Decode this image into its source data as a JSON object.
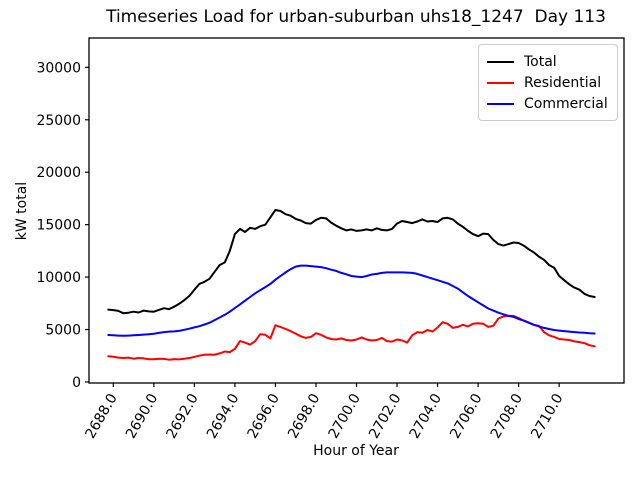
{
  "chart_data": {
    "type": "line",
    "title": "Timeseries Load for urban-suburban uhs18_1247  Day 113",
    "xlabel": "Hour of Year",
    "ylabel": "kW total",
    "xlim": [
      2686.8,
      2713.2
    ],
    "ylim": [
      -100,
      32800
    ],
    "grid": false,
    "legend_position": "upper right",
    "xticks": [
      2688,
      2690,
      2692,
      2694,
      2696,
      2698,
      2700,
      2702,
      2704,
      2706,
      2708,
      2710
    ],
    "xtick_labels": [
      "2688.0",
      "2690.0",
      "2692.0",
      "2694.0",
      "2696.0",
      "2698.0",
      "2700.0",
      "2702.0",
      "2704.0",
      "2706.0",
      "2708.0",
      "2710.0"
    ],
    "yticks": [
      0,
      5000,
      10000,
      15000,
      20000,
      25000,
      30000
    ],
    "ytick_labels": [
      "0",
      "5000",
      "10000",
      "15000",
      "20000",
      "25000",
      "30000"
    ],
    "x": [
      2687.75,
      2688.0,
      2688.25,
      2688.5,
      2688.75,
      2689.0,
      2689.25,
      2689.5,
      2689.75,
      2690.0,
      2690.25,
      2690.5,
      2690.75,
      2691.0,
      2691.25,
      2691.5,
      2691.75,
      2692.0,
      2692.25,
      2692.5,
      2692.75,
      2693.0,
      2693.25,
      2693.5,
      2693.75,
      2694.0,
      2694.25,
      2694.5,
      2694.75,
      2695.0,
      2695.25,
      2695.5,
      2695.75,
      2696.0,
      2696.25,
      2696.5,
      2696.75,
      2697.0,
      2697.25,
      2697.5,
      2697.75,
      2698.0,
      2698.25,
      2698.5,
      2698.75,
      2699.0,
      2699.25,
      2699.5,
      2699.75,
      2700.0,
      2700.25,
      2700.5,
      2700.75,
      2701.0,
      2701.25,
      2701.5,
      2701.75,
      2702.0,
      2702.25,
      2702.5,
      2702.75,
      2703.0,
      2703.25,
      2703.5,
      2703.75,
      2704.0,
      2704.25,
      2704.5,
      2704.75,
      2705.0,
      2705.25,
      2705.5,
      2705.75,
      2706.0,
      2706.25,
      2706.5,
      2706.75,
      2707.0,
      2707.25,
      2707.5,
      2707.75,
      2708.0,
      2708.25,
      2708.5,
      2708.75,
      2709.0,
      2709.25,
      2709.5,
      2709.75,
      2710.0,
      2710.25,
      2710.5,
      2710.75,
      2711.0,
      2711.25,
      2711.5,
      2711.75
    ],
    "series": [
      {
        "name": "Total",
        "color": "#000000",
        "values": [
          6900,
          6850,
          6780,
          6550,
          6600,
          6700,
          6620,
          6800,
          6730,
          6700,
          6870,
          7030,
          6940,
          7180,
          7450,
          7800,
          8200,
          8800,
          9350,
          9550,
          9850,
          10500,
          11150,
          11400,
          12500,
          14100,
          14600,
          14300,
          14700,
          14600,
          14850,
          15000,
          15700,
          16400,
          16300,
          16000,
          15850,
          15550,
          15400,
          15150,
          15100,
          15450,
          15650,
          15600,
          15200,
          14900,
          14650,
          14450,
          14550,
          14400,
          14450,
          14550,
          14450,
          14650,
          14500,
          14450,
          14600,
          15100,
          15350,
          15250,
          15150,
          15300,
          15500,
          15300,
          15350,
          15250,
          15600,
          15650,
          15500,
          15100,
          14800,
          14400,
          14100,
          13900,
          14150,
          14100,
          13550,
          13150,
          13000,
          13150,
          13300,
          13250,
          13000,
          12650,
          12350,
          11950,
          11650,
          11150,
          10900,
          10100,
          9700,
          9300,
          9000,
          8800,
          8400,
          8200,
          8100
        ]
      },
      {
        "name": "Residential",
        "color": "#ff0000",
        "values": [
          2450,
          2400,
          2320,
          2280,
          2320,
          2220,
          2280,
          2250,
          2170,
          2160,
          2220,
          2200,
          2120,
          2180,
          2150,
          2220,
          2280,
          2400,
          2500,
          2600,
          2620,
          2600,
          2720,
          2900,
          2850,
          3150,
          3900,
          3750,
          3550,
          3900,
          4550,
          4500,
          4150,
          5400,
          5250,
          5050,
          4850,
          4600,
          4350,
          4200,
          4300,
          4650,
          4500,
          4250,
          4100,
          4050,
          4150,
          4000,
          3950,
          4050,
          4250,
          4050,
          3950,
          4000,
          4200,
          3900,
          3850,
          4050,
          3950,
          3750,
          4450,
          4750,
          4700,
          4950,
          4800,
          5200,
          5700,
          5550,
          5150,
          5250,
          5450,
          5300,
          5550,
          5600,
          5550,
          5250,
          5350,
          6050,
          6250,
          6300,
          6300,
          6100,
          5850,
          5650,
          5450,
          5350,
          4750,
          4450,
          4300,
          4100,
          4050,
          4000,
          3870,
          3800,
          3700,
          3500,
          3400
        ]
      },
      {
        "name": "Commercial",
        "color": "#0000ff",
        "values": [
          4480,
          4450,
          4420,
          4400,
          4420,
          4450,
          4480,
          4520,
          4550,
          4600,
          4680,
          4750,
          4800,
          4820,
          4870,
          4970,
          5080,
          5200,
          5320,
          5480,
          5650,
          5900,
          6150,
          6400,
          6700,
          7050,
          7400,
          7750,
          8100,
          8450,
          8750,
          9050,
          9350,
          9750,
          10100,
          10450,
          10750,
          11000,
          11100,
          11100,
          11050,
          11000,
          10950,
          10850,
          10700,
          10590,
          10400,
          10270,
          10100,
          10050,
          10000,
          10100,
          10250,
          10300,
          10400,
          10450,
          10450,
          10450,
          10450,
          10430,
          10400,
          10300,
          10150,
          10000,
          9850,
          9700,
          9550,
          9400,
          9150,
          8900,
          8550,
          8200,
          7900,
          7600,
          7300,
          7000,
          6800,
          6600,
          6450,
          6300,
          6200,
          6000,
          5850,
          5650,
          5450,
          5300,
          5150,
          5050,
          4950,
          4900,
          4850,
          4800,
          4750,
          4720,
          4700,
          4650,
          4620
        ]
      }
    ]
  }
}
